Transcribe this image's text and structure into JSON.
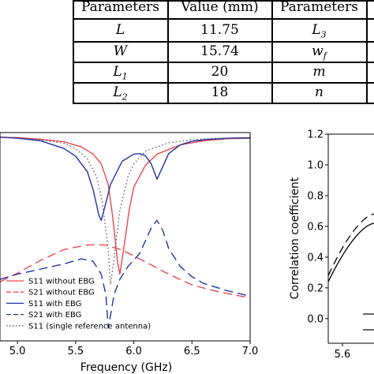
{
  "table": {
    "headers": [
      "Parameters",
      "Value (mm)",
      "Parameters"
    ],
    "rows": [
      {
        "p1": "L",
        "v1": "11.75",
        "p2": "L",
        "p2_sub": "3"
      },
      {
        "p1": "W",
        "v1": "15.74",
        "p2": "w",
        "p2_sub": "f"
      },
      {
        "p1": "L",
        "p1_sub": "1",
        "v1": "20",
        "p2": "m"
      },
      {
        "p1": "L",
        "p1_sub": "2",
        "v1": "18",
        "p2": "n"
      }
    ]
  },
  "chart_data": [
    {
      "type": "line",
      "title": "",
      "xlabel": "Frequency (GHz)",
      "ylabel": "",
      "xlim": [
        4.85,
        7.0
      ],
      "xticks": [
        "5.0",
        "5.5",
        "6.0",
        "6.5",
        "7.0"
      ],
      "grid": false,
      "legend_position": "bottom-left",
      "series": [
        {
          "name": "S11 without EBG",
          "color": "#e8474e",
          "style": "solid",
          "x": [
            4.85,
            5.0,
            5.2,
            5.4,
            5.55,
            5.65,
            5.72,
            5.78,
            5.82,
            5.86,
            5.88,
            5.92,
            5.96,
            6.0,
            6.1,
            6.2,
            6.4,
            6.6,
            6.8,
            7.0
          ],
          "y": [
            -0.3,
            -0.4,
            -0.7,
            -1.2,
            -2.2,
            -3.6,
            -5.5,
            -9.5,
            -16.0,
            -24.5,
            -27.0,
            -21.0,
            -14.5,
            -10.0,
            -5.8,
            -3.6,
            -1.8,
            -1.0,
            -0.6,
            -0.5
          ]
        },
        {
          "name": "S21 without EBG",
          "color": "#e8474e",
          "style": "dashed",
          "x": [
            4.85,
            5.0,
            5.2,
            5.4,
            5.6,
            5.75,
            5.9,
            6.1,
            6.3,
            6.5,
            6.7,
            6.9,
            7.0
          ],
          "y": [
            -28.5,
            -26.8,
            -24.3,
            -22.2,
            -21.3,
            -21.3,
            -22.3,
            -24.6,
            -27.0,
            -29.1,
            -30.3,
            -31.2,
            -31.6
          ]
        },
        {
          "name": "S11 with EBG",
          "color": "#2233a8",
          "style": "solid",
          "x": [
            4.85,
            5.0,
            5.2,
            5.4,
            5.5,
            5.6,
            5.65,
            5.7,
            5.72,
            5.75,
            5.8,
            5.9,
            6.0,
            6.05,
            6.1,
            6.15,
            6.2,
            6.25,
            6.3,
            6.4,
            6.5,
            6.6,
            6.8,
            7.0
          ],
          "y": [
            -0.3,
            -0.5,
            -1.0,
            -2.5,
            -4.0,
            -7.0,
            -10.5,
            -15.5,
            -16.5,
            -14.0,
            -9.5,
            -5.0,
            -3.6,
            -3.5,
            -3.9,
            -5.5,
            -8.5,
            -6.0,
            -3.5,
            -1.8,
            -1.1,
            -0.8,
            -0.5,
            -0.4
          ]
        },
        {
          "name": "S21 with EBG",
          "color": "#2233a8",
          "style": "dashed",
          "x": [
            4.85,
            5.0,
            5.2,
            5.4,
            5.55,
            5.65,
            5.72,
            5.76,
            5.78,
            5.8,
            5.83,
            5.88,
            5.95,
            6.05,
            6.15,
            6.2,
            6.25,
            6.3,
            6.4,
            6.5,
            6.6,
            6.8,
            7.0
          ],
          "y": [
            -28.0,
            -27.0,
            -26.0,
            -25.0,
            -24.0,
            -24.5,
            -27.0,
            -31.0,
            -37.5,
            -35.0,
            -31.0,
            -28.0,
            -25.5,
            -23.0,
            -18.0,
            -16.5,
            -18.5,
            -22.0,
            -25.5,
            -27.5,
            -28.8,
            -30.2,
            -31.3
          ]
        },
        {
          "name": "S11 (single reference antenna)",
          "color": "#555555",
          "style": "dotted",
          "x": [
            4.85,
            5.0,
            5.2,
            5.4,
            5.5,
            5.6,
            5.68,
            5.73,
            5.78,
            5.8,
            5.83,
            5.88,
            5.95,
            6.0,
            6.1,
            6.3,
            6.5,
            6.7,
            7.0
          ],
          "y": [
            -0.3,
            -0.4,
            -0.8,
            -1.5,
            -2.5,
            -4.5,
            -8.0,
            -13.0,
            -22.0,
            -29.0,
            -24.0,
            -14.5,
            -8.0,
            -5.5,
            -3.0,
            -1.4,
            -0.8,
            -0.5,
            -0.4
          ]
        }
      ]
    },
    {
      "type": "line",
      "title": "",
      "xlabel": "",
      "ylabel": "Correlation coefficient",
      "ylim": [
        -0.16,
        1.2
      ],
      "yticks": [
        "0.0",
        "0.2",
        "0.4",
        "0.6",
        "0.8",
        "1.0",
        "1.2"
      ],
      "xticks": [
        "5.6"
      ],
      "grid": false,
      "series": [
        {
          "style": "solid",
          "color": "#000000",
          "x": [
            0,
            1
          ],
          "y": [
            0.24,
            0.62
          ]
        },
        {
          "style": "dashed",
          "color": "#000000",
          "x": [
            0,
            1
          ],
          "y": [
            0.28,
            0.68
          ]
        }
      ]
    }
  ]
}
